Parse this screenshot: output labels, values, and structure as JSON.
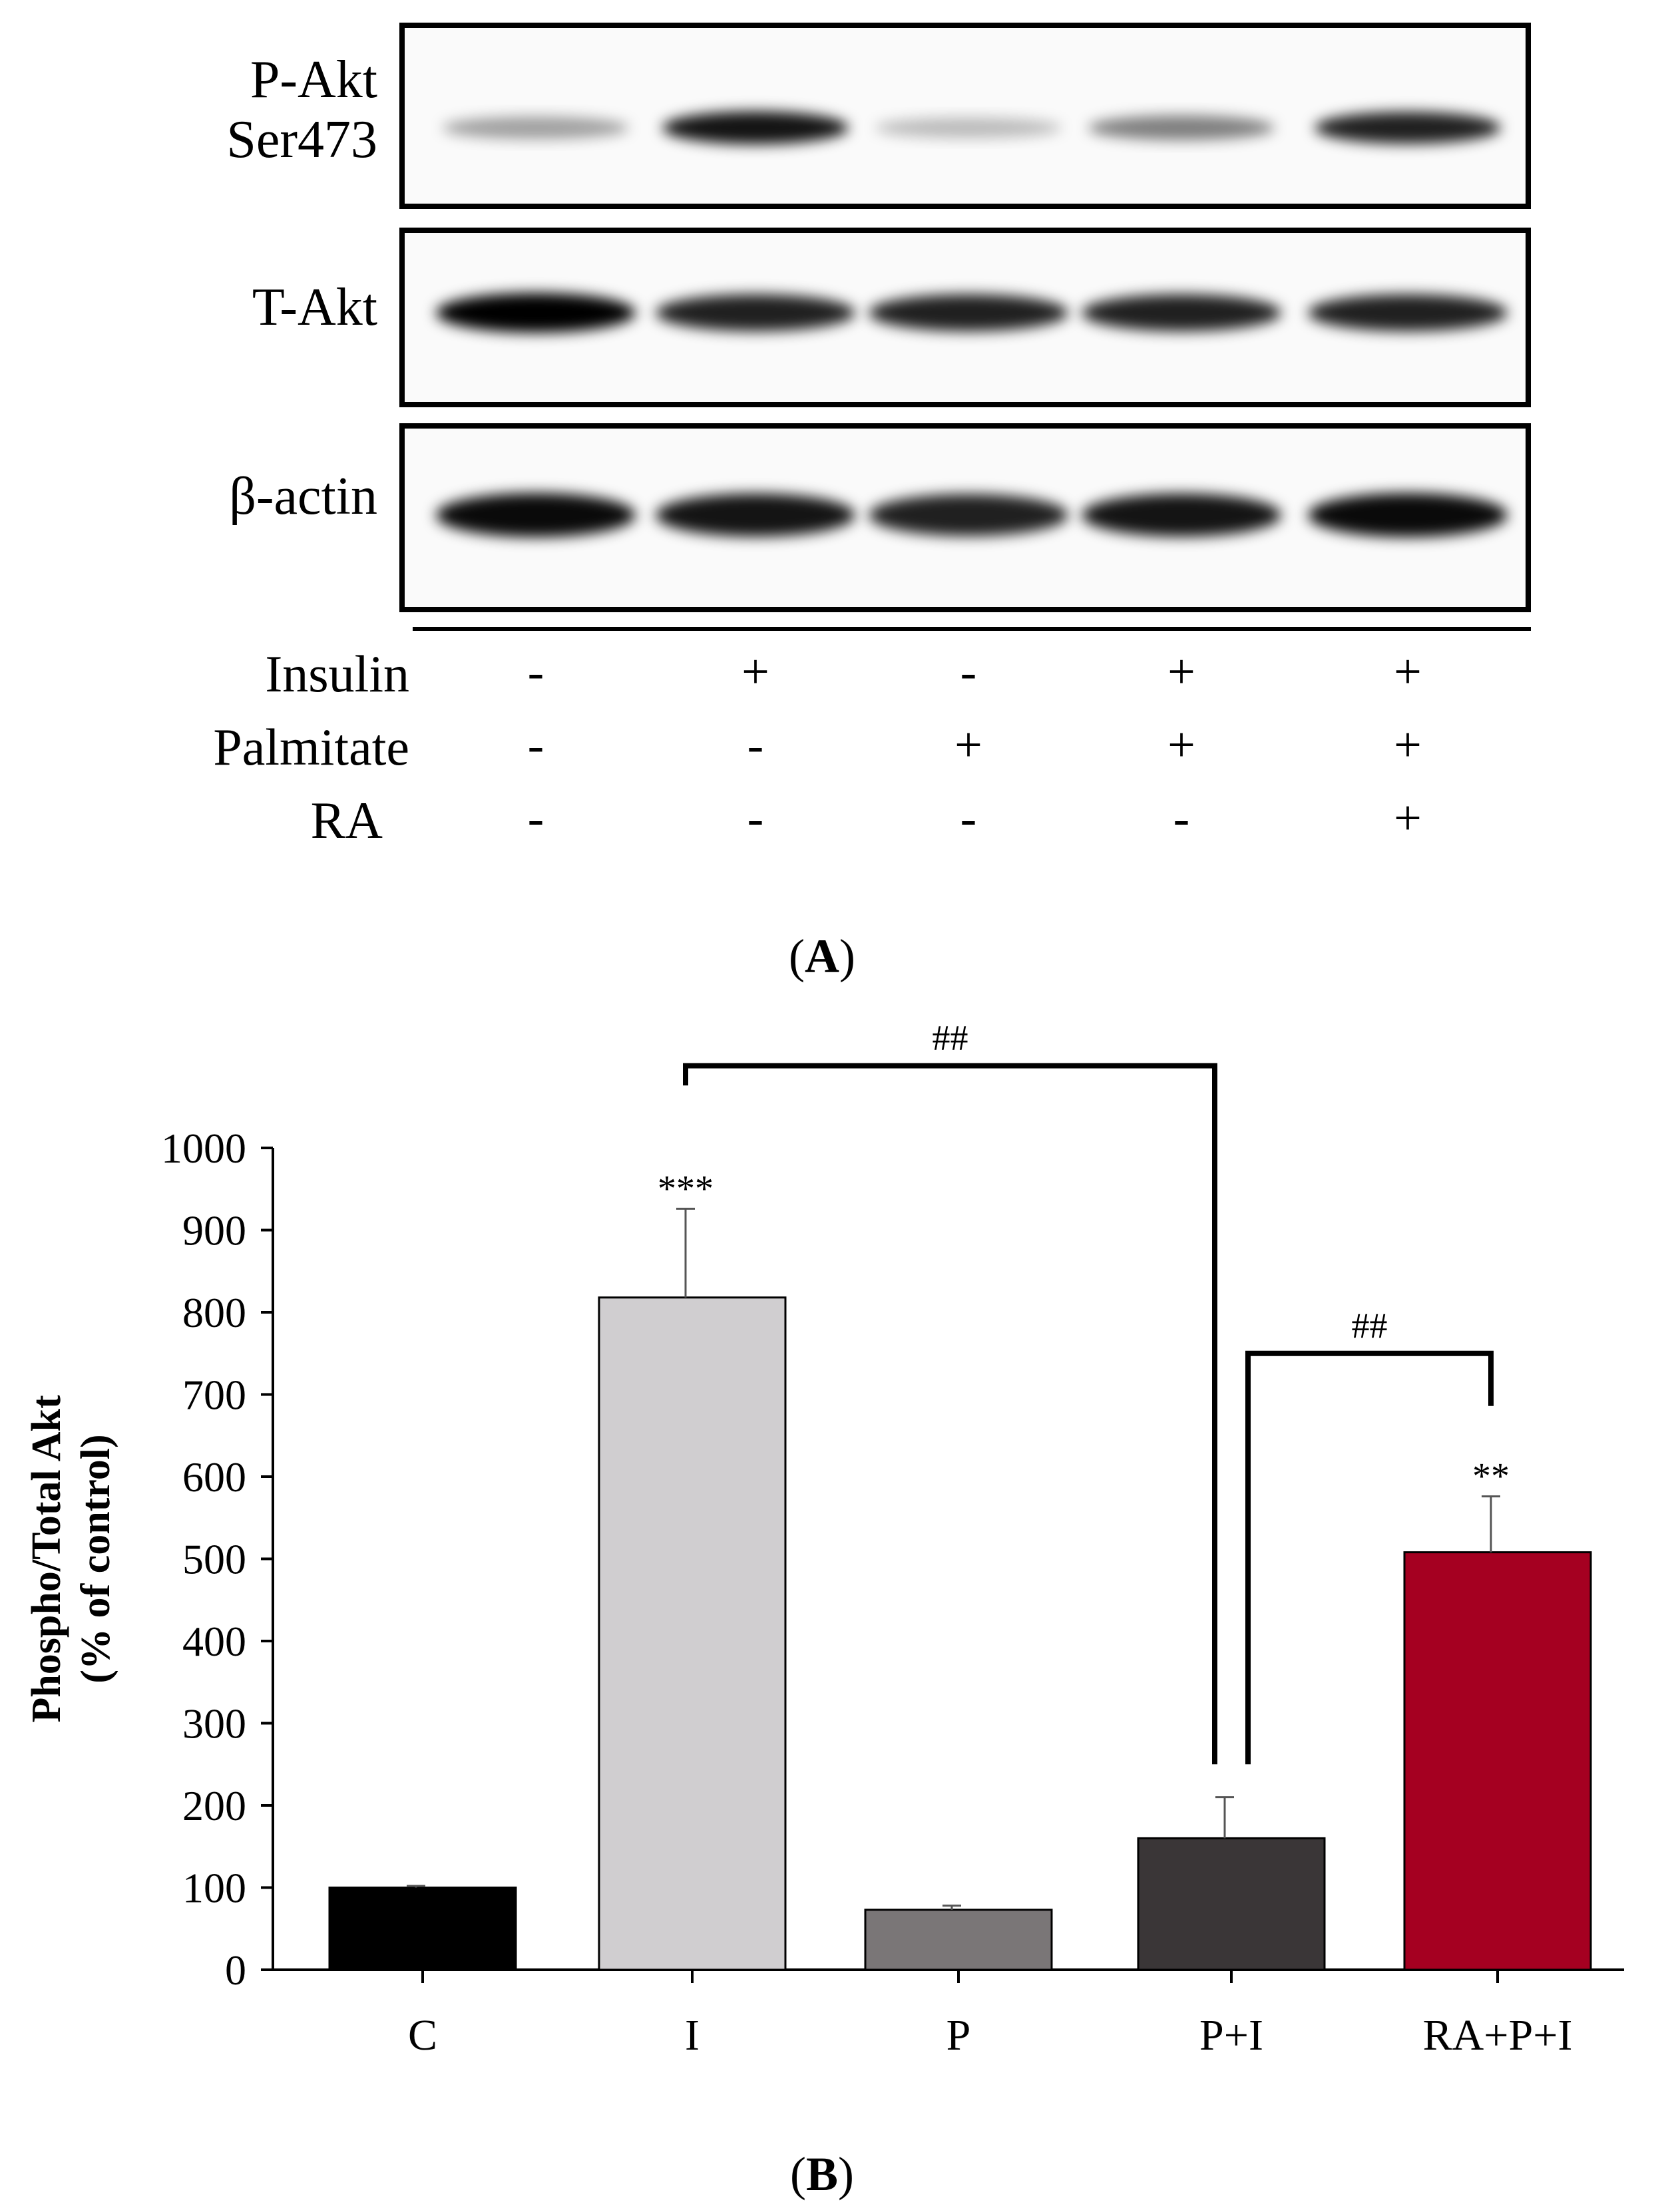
{
  "blot": {
    "rows": [
      {
        "label_lines": [
          "P-Akt",
          "Ser473"
        ]
      },
      {
        "label_lines": [
          "T-Akt"
        ]
      },
      {
        "label_lines": [
          "β-actin"
        ]
      }
    ],
    "treatments": [
      {
        "name": "Insulin",
        "signs": [
          "-",
          "+",
          "-",
          "+",
          "+"
        ]
      },
      {
        "name": "Palmitate",
        "signs": [
          "-",
          "-",
          "+",
          "+",
          "+"
        ]
      },
      {
        "name": "RA",
        "signs": [
          "-",
          "-",
          "-",
          "-",
          "+"
        ]
      }
    ],
    "band_intensity": {
      "p_akt": [
        0.25,
        0.9,
        0.12,
        0.4,
        0.85
      ],
      "t_akt": [
        1.0,
        0.85,
        0.85,
        0.85,
        0.85
      ],
      "beta_actin": [
        0.95,
        0.9,
        0.85,
        0.9,
        0.95
      ]
    }
  },
  "panel_a_label": {
    "open": "(",
    "letter": "A",
    "close": ")"
  },
  "panel_b_label": {
    "open": "(",
    "letter": "B",
    "close": ")"
  },
  "chart_data": {
    "type": "bar",
    "categories": [
      "C",
      "I",
      "P",
      "P+I",
      "RA+P+I"
    ],
    "values": [
      100,
      818,
      73,
      160,
      508
    ],
    "errors": [
      2,
      108,
      5,
      50,
      68
    ],
    "colors": [
      "#000000",
      "#d0ced0",
      "#7a7677",
      "#3a3637",
      "#a50021"
    ],
    "ylabel_lines": [
      "Phospho/Total Akt",
      "(% of control)"
    ],
    "ylim": [
      0,
      1000
    ],
    "yticks": [
      0,
      100,
      200,
      300,
      400,
      500,
      600,
      700,
      800,
      900,
      1000
    ],
    "annotations": [
      {
        "category": "I",
        "text": "***"
      },
      {
        "category": "RA+P+I",
        "text": "**"
      }
    ],
    "comparisons": [
      {
        "from": "I",
        "to": "P+I",
        "text": "##",
        "level": 1100
      },
      {
        "from": "P+I",
        "to": "RA+P+I",
        "text": "##",
        "level": 750
      }
    ]
  }
}
